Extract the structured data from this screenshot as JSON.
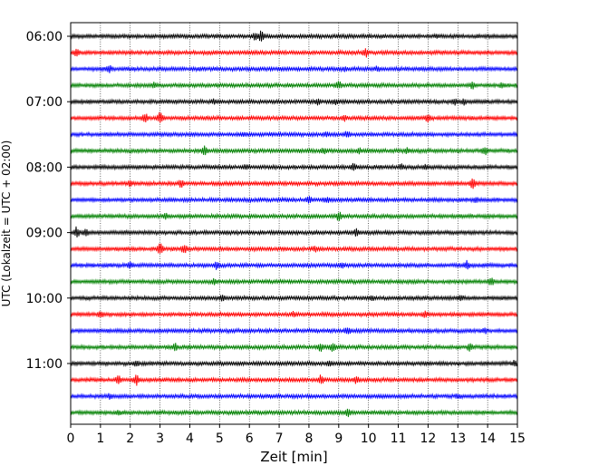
{
  "chart_data": {
    "type": "line",
    "title": "",
    "xlabel": "Zeit  [min]",
    "ylabel": "UTC (Lokalzeit = UTC + 02:00)",
    "xlim": [
      0,
      15
    ],
    "x_ticks": [
      "0",
      "1",
      "2",
      "3",
      "4",
      "5",
      "6",
      "7",
      "8",
      "9",
      "10",
      "11",
      "12",
      "13",
      "14",
      "15"
    ],
    "y_tick_labels": [
      "06:00",
      "07:00",
      "08:00",
      "09:00",
      "10:00",
      "11:00"
    ],
    "grid": "vertical dotted at each minute",
    "start_time": "06:00",
    "row_interval_min": 15,
    "row_count": 24,
    "color_cycle": [
      "#000000",
      "#ff0000",
      "#0000ff",
      "#008000"
    ],
    "series": [
      {
        "start": "06:00",
        "color": "#000000",
        "events": [
          {
            "x": 6.4,
            "amp": 6
          },
          {
            "x": 6.2,
            "amp": 4
          },
          {
            "x": 12.3,
            "amp": 2
          }
        ]
      },
      {
        "start": "06:15",
        "color": "#ff0000",
        "events": [
          {
            "x": 0.2,
            "amp": 4
          },
          {
            "x": 9.9,
            "amp": 5
          }
        ]
      },
      {
        "start": "06:30",
        "color": "#0000ff",
        "events": [
          {
            "x": 1.3,
            "amp": 4
          },
          {
            "x": 4.3,
            "amp": 2
          },
          {
            "x": 9.2,
            "amp": 2
          },
          {
            "x": 10.3,
            "amp": 3
          }
        ]
      },
      {
        "start": "06:45",
        "color": "#008000",
        "events": [
          {
            "x": 2.8,
            "amp": 3
          },
          {
            "x": 9.0,
            "amp": 4
          },
          {
            "x": 13.5,
            "amp": 4
          },
          {
            "x": 14.5,
            "amp": 3
          }
        ]
      },
      {
        "start": "07:00",
        "color": "#000000",
        "events": [
          {
            "x": 4.8,
            "amp": 3
          },
          {
            "x": 8.3,
            "amp": 3
          },
          {
            "x": 8.9,
            "amp": 3
          },
          {
            "x": 12.9,
            "amp": 4
          },
          {
            "x": 13.2,
            "amp": 3
          }
        ]
      },
      {
        "start": "07:15",
        "color": "#ff0000",
        "events": [
          {
            "x": 2.5,
            "amp": 5
          },
          {
            "x": 3.0,
            "amp": 6
          },
          {
            "x": 9.2,
            "amp": 3
          },
          {
            "x": 12.0,
            "amp": 4
          }
        ]
      },
      {
        "start": "07:30",
        "color": "#0000ff",
        "events": [
          {
            "x": 5.8,
            "amp": 2
          },
          {
            "x": 8.6,
            "amp": 3
          },
          {
            "x": 9.3,
            "amp": 4
          }
        ]
      },
      {
        "start": "07:45",
        "color": "#008000",
        "events": [
          {
            "x": 4.5,
            "amp": 5
          },
          {
            "x": 8.5,
            "amp": 3
          },
          {
            "x": 9.7,
            "amp": 3
          },
          {
            "x": 11.3,
            "amp": 3
          },
          {
            "x": 13.9,
            "amp": 5
          }
        ]
      },
      {
        "start": "08:00",
        "color": "#000000",
        "events": [
          {
            "x": 5.9,
            "amp": 3
          },
          {
            "x": 9.5,
            "amp": 5
          },
          {
            "x": 11.1,
            "amp": 3
          },
          {
            "x": 11.9,
            "amp": 3
          }
        ]
      },
      {
        "start": "08:15",
        "color": "#ff0000",
        "events": [
          {
            "x": 2.0,
            "amp": 3
          },
          {
            "x": 3.7,
            "amp": 4
          },
          {
            "x": 13.5,
            "amp": 6
          }
        ]
      },
      {
        "start": "08:30",
        "color": "#0000ff",
        "events": [
          {
            "x": 8.0,
            "amp": 4
          },
          {
            "x": 8.6,
            "amp": 3
          },
          {
            "x": 13.6,
            "amp": 3
          }
        ]
      },
      {
        "start": "08:45",
        "color": "#008000",
        "events": [
          {
            "x": 3.2,
            "amp": 3
          },
          {
            "x": 9.0,
            "amp": 5
          }
        ]
      },
      {
        "start": "09:00",
        "color": "#000000",
        "events": [
          {
            "x": 0.2,
            "amp": 6
          },
          {
            "x": 0.5,
            "amp": 4
          },
          {
            "x": 9.6,
            "amp": 4
          }
        ]
      },
      {
        "start": "09:15",
        "color": "#ff0000",
        "events": [
          {
            "x": 3.0,
            "amp": 6
          },
          {
            "x": 3.8,
            "amp": 5
          },
          {
            "x": 8.2,
            "amp": 3
          }
        ]
      },
      {
        "start": "09:30",
        "color": "#0000ff",
        "events": [
          {
            "x": 2.0,
            "amp": 3
          },
          {
            "x": 4.9,
            "amp": 4
          },
          {
            "x": 9.1,
            "amp": 3
          },
          {
            "x": 13.3,
            "amp": 5
          }
        ]
      },
      {
        "start": "09:45",
        "color": "#008000",
        "events": [
          {
            "x": 4.8,
            "amp": 3
          },
          {
            "x": 14.1,
            "amp": 5
          }
        ]
      },
      {
        "start": "10:00",
        "color": "#000000",
        "events": [
          {
            "x": 5.1,
            "amp": 3
          },
          {
            "x": 10.1,
            "amp": 3
          },
          {
            "x": 13.1,
            "amp": 3
          }
        ]
      },
      {
        "start": "10:15",
        "color": "#ff0000",
        "events": [
          {
            "x": 1.0,
            "amp": 3
          },
          {
            "x": 7.5,
            "amp": 3
          },
          {
            "x": 11.9,
            "amp": 4
          }
        ]
      },
      {
        "start": "10:30",
        "color": "#0000ff",
        "events": [
          {
            "x": 9.3,
            "amp": 4
          },
          {
            "x": 13.9,
            "amp": 3
          }
        ]
      },
      {
        "start": "10:45",
        "color": "#008000",
        "events": [
          {
            "x": 3.5,
            "amp": 4
          },
          {
            "x": 8.4,
            "amp": 5
          },
          {
            "x": 8.8,
            "amp": 5
          },
          {
            "x": 13.4,
            "amp": 4
          }
        ]
      },
      {
        "start": "11:00",
        "color": "#000000",
        "events": [
          {
            "x": 2.2,
            "amp": 3
          },
          {
            "x": 8.7,
            "amp": 3
          },
          {
            "x": 14.9,
            "amp": 3
          }
        ]
      },
      {
        "start": "11:15",
        "color": "#ff0000",
        "events": [
          {
            "x": 1.6,
            "amp": 5
          },
          {
            "x": 2.2,
            "amp": 6
          },
          {
            "x": 8.4,
            "amp": 5
          },
          {
            "x": 9.6,
            "amp": 4
          }
        ]
      },
      {
        "start": "11:30",
        "color": "#0000ff",
        "events": [
          {
            "x": 1.3,
            "amp": 3
          },
          {
            "x": 13.0,
            "amp": 3
          }
        ]
      },
      {
        "start": "11:45",
        "color": "#008000",
        "events": [
          {
            "x": 1.6,
            "amp": 3
          },
          {
            "x": 9.3,
            "amp": 5
          }
        ]
      }
    ]
  }
}
